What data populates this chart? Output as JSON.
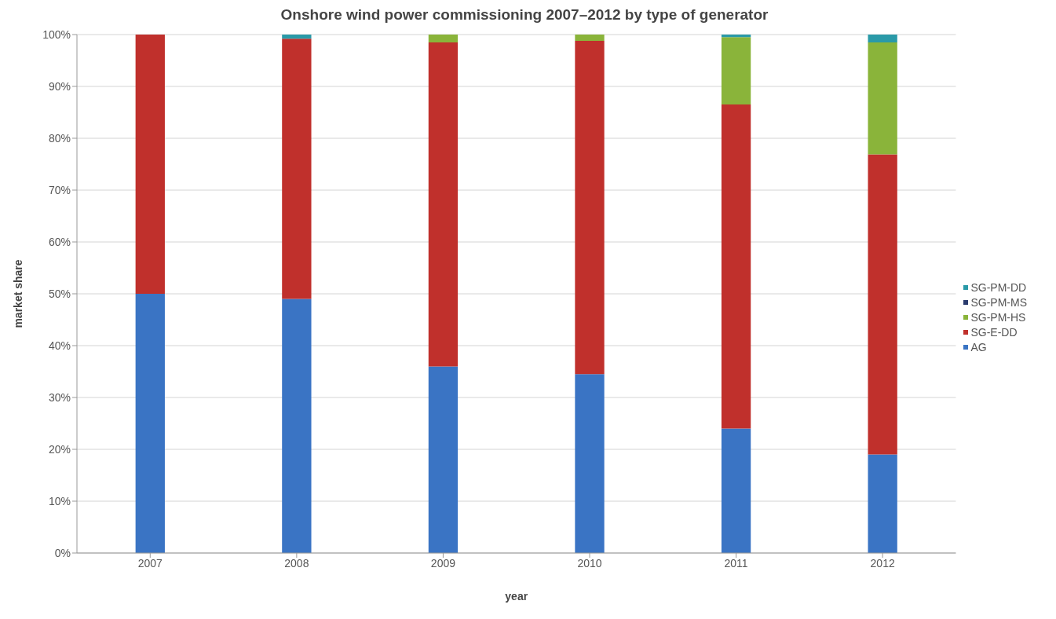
{
  "chart_data": {
    "type": "bar",
    "title": "Onshore wind power commissioning 2007–2012 by type of generator",
    "xlabel": "year",
    "ylabel": "market share",
    "categories": [
      "2007",
      "2008",
      "2009",
      "2010",
      "2011",
      "2012"
    ],
    "stacked": true,
    "series": [
      {
        "name": "AG",
        "color": "#3a74c4",
        "values": [
          50,
          49,
          36,
          34.5,
          24,
          19
        ]
      },
      {
        "name": "SG-E-DD",
        "color": "#c0302c",
        "values": [
          50,
          50.2,
          62.5,
          64.3,
          62.5,
          57.9
        ]
      },
      {
        "name": "SG-PM-HS",
        "color": "#8ab43a",
        "values": [
          0,
          0,
          1.5,
          1.2,
          13,
          21.6
        ]
      },
      {
        "name": "SG-PM-MS",
        "color": "#2a3b6e",
        "values": [
          0,
          0,
          0,
          0,
          0,
          0
        ]
      },
      {
        "name": "SG-PM-DD",
        "color": "#2a9aa8",
        "values": [
          0,
          0.8,
          0,
          0,
          0.5,
          1.5
        ]
      }
    ],
    "ylim": [
      0,
      100
    ],
    "yticks": [
      {
        "value": 0,
        "label": "0%"
      },
      {
        "value": 10,
        "label": "10%"
      },
      {
        "value": 20,
        "label": "20%"
      },
      {
        "value": 30,
        "label": "30%"
      },
      {
        "value": 40,
        "label": "40%"
      },
      {
        "value": 50,
        "label": "50%"
      },
      {
        "value": 60,
        "label": "60%"
      },
      {
        "value": 70,
        "label": "70%"
      },
      {
        "value": 80,
        "label": "80%"
      },
      {
        "value": 90,
        "label": "90%"
      },
      {
        "value": 100,
        "label": "100%"
      }
    ],
    "grid": "y",
    "legend": "right"
  }
}
